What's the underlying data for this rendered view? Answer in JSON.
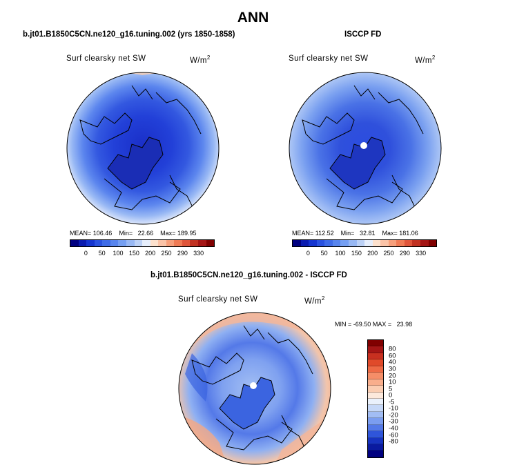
{
  "figure": {
    "title": "ANN"
  },
  "chart_data": [
    {
      "type": "heatmap",
      "projection": "polar-stereographic-north",
      "panel_title": "b.jt01.B1850C5CN.ne120_g16.tuning.002 (yrs 1850-1858)",
      "field": "Surf clearsky net SW",
      "units": "W/m²",
      "stats": {
        "mean_label": "MEAN=",
        "mean": "106.46",
        "min_label": "Min=",
        "min": "22.66",
        "max_label": "Max=",
        "max": "189.95"
      },
      "colorbar": {
        "orientation": "horizontal",
        "tick_labels": [
          "0",
          "50",
          "100",
          "150",
          "200",
          "250",
          "290",
          "330"
        ],
        "colors": [
          "#000080",
          "#0a1bb0",
          "#1535d0",
          "#2a52e0",
          "#3f6ce8",
          "#5885ee",
          "#759ff2",
          "#98b8f4",
          "#bcd1f6",
          "#e6eefc",
          "#fde1cd",
          "#fbc3a7",
          "#f79f7b",
          "#f07b55",
          "#e0553a",
          "#c23222",
          "#a51515",
          "#800000"
        ]
      }
    },
    {
      "type": "heatmap",
      "projection": "polar-stereographic-north",
      "panel_title": "ISCCP FD",
      "field": "Surf clearsky net SW",
      "units": "W/m²",
      "stats": {
        "mean_label": "MEAN=",
        "mean": "112.52",
        "min_label": "Min=",
        "min": "32.81",
        "max_label": "Max=",
        "max": "181.06"
      },
      "colorbar": {
        "orientation": "horizontal",
        "tick_labels": [
          "0",
          "50",
          "100",
          "150",
          "200",
          "250",
          "290",
          "330"
        ],
        "colors": [
          "#000080",
          "#0a1bb0",
          "#1535d0",
          "#2a52e0",
          "#3f6ce8",
          "#5885ee",
          "#759ff2",
          "#98b8f4",
          "#bcd1f6",
          "#e6eefc",
          "#fde1cd",
          "#fbc3a7",
          "#f79f7b",
          "#f07b55",
          "#e0553a",
          "#c23222",
          "#a51515",
          "#800000"
        ]
      }
    },
    {
      "type": "heatmap",
      "projection": "polar-stereographic-north",
      "panel_title": "b.jt01.B1850C5CN.ne120_g16.tuning.002 - ISCCP FD",
      "field": "Surf clearsky net SW",
      "units": "W/m²",
      "stats": {
        "min_label": "MIN =",
        "min": "-69.50",
        "max_label": "MAX =",
        "max": "23.98"
      },
      "colorbar": {
        "orientation": "vertical",
        "tick_labels": [
          "80",
          "60",
          "40",
          "30",
          "20",
          "10",
          "5",
          "0",
          "-5",
          "-10",
          "-20",
          "-30",
          "-40",
          "-60",
          "-80"
        ],
        "colors": [
          "#800000",
          "#a51515",
          "#c83020",
          "#e04a2a",
          "#ee6a45",
          "#f58e68",
          "#f9ae8c",
          "#fbcdb2",
          "#fde9dc",
          "#eaf1fc",
          "#c6d8f8",
          "#a2bdf4",
          "#7b9df0",
          "#5479e8",
          "#2f55da",
          "#1733c0",
          "#0a1aa0",
          "#000080"
        ]
      }
    }
  ]
}
